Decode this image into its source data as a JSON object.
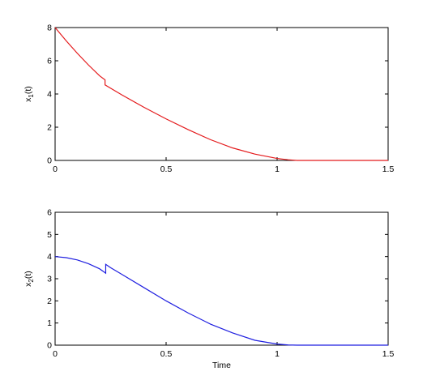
{
  "chart_data": [
    {
      "type": "line",
      "ylabel": "x",
      "ylabel_sub": "1",
      "ylabel_suffix": "(t)",
      "xlabel": "",
      "xlim": [
        0,
        1.5
      ],
      "ylim": [
        0,
        8
      ],
      "xticks": [
        0,
        0.5,
        1,
        1.5
      ],
      "xtick_labels": [
        "0",
        "0.5",
        "1",
        "1.5"
      ],
      "yticks": [
        0,
        2,
        4,
        6,
        8
      ],
      "ytick_labels": [
        "0",
        "2",
        "4",
        "6",
        "8"
      ],
      "grid": false,
      "series": [
        {
          "color": "#e41a1c",
          "x": [
            0,
            0.05,
            0.1,
            0.15,
            0.2,
            0.225,
            0.225,
            0.25,
            0.3,
            0.4,
            0.5,
            0.6,
            0.7,
            0.8,
            0.9,
            1.0,
            1.05,
            1.09,
            1.1,
            1.2,
            1.3,
            1.4,
            1.5
          ],
          "y": [
            8.0,
            7.2,
            6.45,
            5.75,
            5.1,
            4.85,
            4.55,
            4.35,
            3.95,
            3.2,
            2.5,
            1.85,
            1.25,
            0.75,
            0.38,
            0.12,
            0.04,
            0.0,
            0.0,
            0.0,
            0.0,
            0.0,
            0.0
          ]
        }
      ]
    },
    {
      "type": "line",
      "ylabel": "x",
      "ylabel_sub": "2",
      "ylabel_suffix": "(t)",
      "xlabel": "Time",
      "xlim": [
        0,
        1.5
      ],
      "ylim": [
        0,
        6
      ],
      "xticks": [
        0,
        0.5,
        1,
        1.5
      ],
      "xtick_labels": [
        "0",
        "0.5",
        "1",
        "1.5"
      ],
      "yticks": [
        0,
        1,
        2,
        3,
        4,
        5,
        6
      ],
      "ytick_labels": [
        "0",
        "1",
        "2",
        "3",
        "4",
        "5",
        "6"
      ],
      "grid": false,
      "series": [
        {
          "color": "#1f1fe0",
          "x": [
            0,
            0.05,
            0.1,
            0.15,
            0.2,
            0.228,
            0.228,
            0.25,
            0.3,
            0.4,
            0.5,
            0.6,
            0.7,
            0.8,
            0.9,
            1.0,
            1.05,
            1.09,
            1.1,
            1.2,
            1.3,
            1.4,
            1.5
          ],
          "y": [
            4.0,
            3.95,
            3.85,
            3.68,
            3.45,
            3.25,
            3.65,
            3.5,
            3.2,
            2.6,
            2.0,
            1.45,
            0.95,
            0.55,
            0.22,
            0.05,
            0.01,
            0.0,
            0.0,
            0.0,
            0.0,
            0.0,
            0.0
          ]
        }
      ]
    }
  ]
}
